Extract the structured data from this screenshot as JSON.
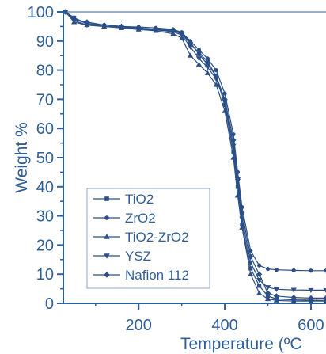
{
  "colors": {
    "accent": "#2f5f9a",
    "series": "#2b4f86"
  },
  "chart_data": {
    "type": "line",
    "title": "",
    "xlabel": "Temperature (ºC",
    "ylabel": "Weight %",
    "xlim": [
      25,
      635
    ],
    "ylim": [
      0,
      100
    ],
    "x_ticks": [
      "200",
      "400",
      "600"
    ],
    "y_ticks": [
      "0",
      "10",
      "20",
      "30",
      "40",
      "50",
      "60",
      "70",
      "80",
      "90",
      "100"
    ],
    "grid": false,
    "legend_position": "bottom-left",
    "series": [
      {
        "name": "TiO2",
        "marker": "square",
        "x": [
          30,
          50,
          80,
          120,
          160,
          200,
          240,
          280,
          300,
          320,
          340,
          360,
          380,
          400,
          420,
          430,
          440,
          460,
          480,
          500,
          520,
          560,
          600,
          635
        ],
        "y": [
          100,
          98,
          96,
          95,
          94.5,
          94,
          93.8,
          93.5,
          92.5,
          89,
          86,
          83,
          78,
          68,
          52,
          40,
          27,
          12,
          6,
          2.5,
          1.5,
          1.2,
          1.1,
          1.0
        ]
      },
      {
        "name": "ZrO2",
        "marker": "circle",
        "x": [
          30,
          50,
          80,
          120,
          160,
          200,
          240,
          280,
          300,
          320,
          340,
          360,
          380,
          400,
          420,
          430,
          440,
          460,
          480,
          500,
          520,
          560,
          600,
          635
        ],
        "y": [
          100,
          97.5,
          96,
          95.5,
          95,
          94.8,
          94.5,
          94,
          93,
          90,
          87,
          84,
          80,
          72,
          58,
          45,
          33,
          18,
          13,
          11.8,
          11.5,
          11.3,
          11.2,
          11.2
        ]
      },
      {
        "name": "TiO2-ZrO2",
        "marker": "triangle-up",
        "x": [
          30,
          50,
          80,
          120,
          160,
          200,
          240,
          280,
          300,
          320,
          340,
          360,
          380,
          400,
          420,
          430,
          440,
          460,
          480,
          500,
          520,
          560,
          600,
          635
        ],
        "y": [
          100,
          96.5,
          95.5,
          95,
          94.5,
          94,
          93.5,
          92.5,
          91,
          85,
          82,
          79,
          75,
          66,
          50,
          37,
          26,
          10,
          3.5,
          1.5,
          1.0,
          0.8,
          0.8,
          0.8
        ]
      },
      {
        "name": "YSZ",
        "marker": "triangle-down",
        "x": [
          30,
          50,
          80,
          120,
          160,
          200,
          240,
          280,
          300,
          320,
          340,
          360,
          380,
          400,
          420,
          430,
          440,
          460,
          480,
          500,
          520,
          560,
          600,
          635
        ],
        "y": [
          100,
          97,
          95.5,
          95,
          94.8,
          94.2,
          93.8,
          93.2,
          92,
          88,
          84,
          81,
          77,
          69,
          54,
          42,
          29,
          14,
          8,
          5.5,
          4.8,
          4.6,
          4.5,
          4.5
        ]
      },
      {
        "name": "Nafion 112",
        "marker": "diamond",
        "x": [
          30,
          50,
          80,
          120,
          160,
          200,
          240,
          280,
          300,
          320,
          340,
          360,
          380,
          400,
          420,
          430,
          440,
          460,
          480,
          500,
          520,
          560,
          600,
          635
        ],
        "y": [
          100,
          97.5,
          96.5,
          95.5,
          95,
          94.5,
          94,
          93.8,
          92.8,
          89.5,
          85.5,
          82,
          78,
          70,
          56,
          43,
          31,
          16,
          10,
          3.5,
          2.5,
          2.0,
          1.8,
          1.8
        ]
      }
    ]
  }
}
